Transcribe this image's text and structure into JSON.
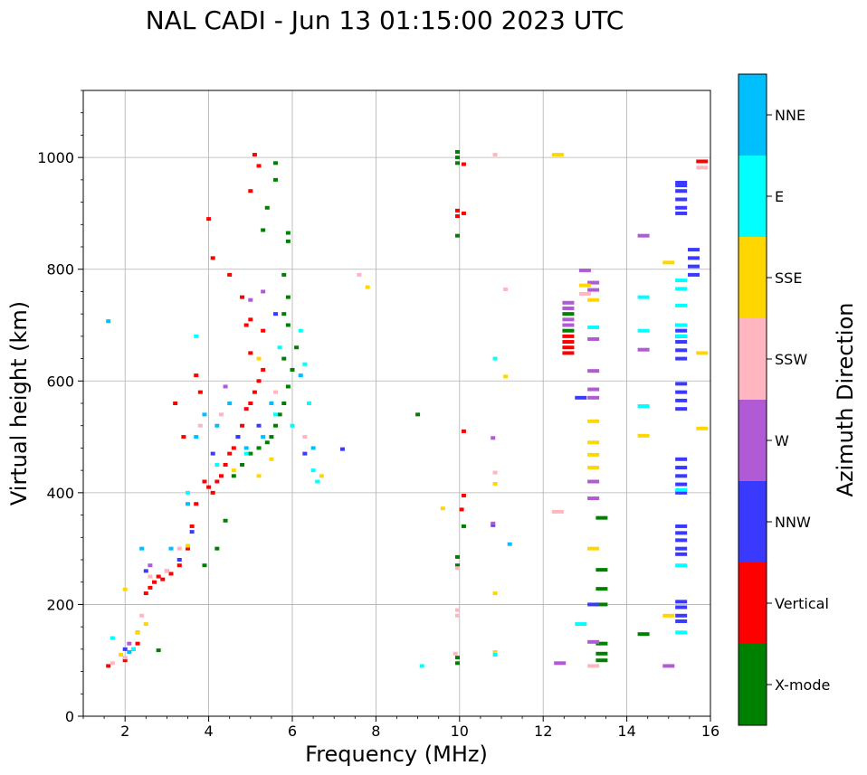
{
  "chart_data": {
    "type": "scatter",
    "title": "NAL CADI - Jun 13 01:15:00 2023 UTC",
    "xlabel": "Frequency (MHz)",
    "ylabel": "Virtual height (km)",
    "xlim": [
      1,
      16
    ],
    "ylim": [
      0,
      1120
    ],
    "xticks": [
      2,
      4,
      6,
      8,
      10,
      12,
      14,
      16
    ],
    "yticks": [
      0,
      200,
      400,
      600,
      800,
      1000
    ],
    "grid": true,
    "colorbar": {
      "label": "Azimuth Direction",
      "categories": [
        {
          "name": "X-mode",
          "color": "#008000"
        },
        {
          "name": "Vertical",
          "color": "#ff0000"
        },
        {
          "name": "NNW",
          "color": "#3a3aff"
        },
        {
          "name": "W",
          "color": "#b05ad6"
        },
        {
          "name": "SSW",
          "color": "#ffb6c1"
        },
        {
          "name": "SSE",
          "color": "#ffd700"
        },
        {
          "name": "E",
          "color": "#00ffff"
        },
        {
          "name": "NNE",
          "color": "#00bfff"
        }
      ]
    },
    "series": [
      {
        "name": "X-mode",
        "points": [
          [
            2.8,
            118
          ],
          [
            3.9,
            270
          ],
          [
            4.2,
            300
          ],
          [
            4.4,
            350
          ],
          [
            4.6,
            430
          ],
          [
            4.8,
            450
          ],
          [
            5.0,
            470
          ],
          [
            5.2,
            480
          ],
          [
            5.4,
            490
          ],
          [
            5.5,
            500
          ],
          [
            5.6,
            520
          ],
          [
            5.7,
            540
          ],
          [
            5.8,
            560
          ],
          [
            5.9,
            590
          ],
          [
            6.0,
            620
          ],
          [
            5.8,
            640
          ],
          [
            6.1,
            660
          ],
          [
            5.9,
            700
          ],
          [
            5.8,
            720
          ],
          [
            5.9,
            750
          ],
          [
            5.8,
            790
          ],
          [
            5.9,
            850
          ],
          [
            5.9,
            865
          ],
          [
            5.3,
            870
          ],
          [
            5.4,
            910
          ],
          [
            5.6,
            960
          ],
          [
            5.6,
            990
          ],
          [
            9.0,
            540
          ],
          [
            9.95,
            95
          ],
          [
            9.95,
            105
          ],
          [
            9.95,
            270
          ],
          [
            9.95,
            285
          ],
          [
            9.95,
            860
          ],
          [
            9.95,
            990
          ],
          [
            9.95,
            1000
          ],
          [
            9.95,
            1010
          ],
          [
            10.1,
            340
          ],
          [
            12.6,
            690
          ],
          [
            12.6,
            720
          ],
          [
            13.4,
            100
          ],
          [
            13.4,
            112
          ],
          [
            13.4,
            130
          ],
          [
            13.4,
            200
          ],
          [
            13.4,
            228
          ],
          [
            13.4,
            262
          ],
          [
            13.4,
            355
          ],
          [
            14.4,
            147
          ]
        ]
      },
      {
        "name": "Vertical",
        "points": [
          [
            1.6,
            90
          ],
          [
            2.0,
            100
          ],
          [
            2.2,
            120
          ],
          [
            2.3,
            130
          ],
          [
            2.3,
            150
          ],
          [
            2.5,
            220
          ],
          [
            2.6,
            230
          ],
          [
            2.7,
            240
          ],
          [
            2.8,
            250
          ],
          [
            2.9,
            245
          ],
          [
            3.0,
            260
          ],
          [
            3.1,
            255
          ],
          [
            3.3,
            270
          ],
          [
            3.5,
            300
          ],
          [
            3.6,
            340
          ],
          [
            3.7,
            380
          ],
          [
            3.9,
            420
          ],
          [
            4.0,
            410
          ],
          [
            4.1,
            400
          ],
          [
            4.2,
            420
          ],
          [
            4.3,
            430
          ],
          [
            4.4,
            450
          ],
          [
            4.5,
            470
          ],
          [
            4.6,
            480
          ],
          [
            4.7,
            500
          ],
          [
            4.8,
            520
          ],
          [
            4.9,
            550
          ],
          [
            5.0,
            560
          ],
          [
            5.1,
            580
          ],
          [
            5.2,
            600
          ],
          [
            5.3,
            620
          ],
          [
            5.0,
            650
          ],
          [
            4.9,
            700
          ],
          [
            4.8,
            750
          ],
          [
            4.5,
            790
          ],
          [
            4.1,
            820
          ],
          [
            4.0,
            890
          ],
          [
            5.0,
            940
          ],
          [
            5.2,
            985
          ],
          [
            5.1,
            1005
          ],
          [
            5.3,
            690
          ],
          [
            5.0,
            710
          ],
          [
            3.7,
            610
          ],
          [
            3.8,
            580
          ],
          [
            3.4,
            500
          ],
          [
            3.2,
            560
          ],
          [
            9.95,
            895
          ],
          [
            9.95,
            905
          ],
          [
            10.1,
            900
          ],
          [
            10.1,
            988
          ],
          [
            10.1,
            510
          ],
          [
            10.1,
            395
          ],
          [
            10.05,
            370
          ],
          [
            12.6,
            650
          ],
          [
            12.6,
            660
          ],
          [
            12.6,
            670
          ],
          [
            12.6,
            680
          ],
          [
            15.8,
            993
          ]
        ]
      },
      {
        "name": "NNW",
        "points": [
          [
            2.0,
            120
          ],
          [
            2.5,
            260
          ],
          [
            3.3,
            280
          ],
          [
            3.6,
            330
          ],
          [
            4.1,
            470
          ],
          [
            4.7,
            500
          ],
          [
            5.2,
            520
          ],
          [
            5.6,
            720
          ],
          [
            6.3,
            470
          ],
          [
            7.2,
            478
          ],
          [
            10.8,
            342
          ],
          [
            12.9,
            570
          ],
          [
            13.2,
            200
          ],
          [
            15.3,
            925
          ],
          [
            15.3,
            955
          ],
          [
            15.3,
            950
          ],
          [
            15.3,
            940
          ],
          [
            15.3,
            910
          ],
          [
            15.3,
            900
          ],
          [
            15.6,
            835
          ],
          [
            15.6,
            820
          ],
          [
            15.6,
            805
          ],
          [
            15.6,
            790
          ],
          [
            15.3,
            700
          ],
          [
            15.3,
            690
          ],
          [
            15.3,
            680
          ],
          [
            15.3,
            670
          ],
          [
            15.3,
            655
          ],
          [
            15.3,
            640
          ],
          [
            15.3,
            595
          ],
          [
            15.3,
            580
          ],
          [
            15.3,
            565
          ],
          [
            15.3,
            550
          ],
          [
            15.3,
            460
          ],
          [
            15.3,
            445
          ],
          [
            15.3,
            430
          ],
          [
            15.3,
            415
          ],
          [
            15.3,
            400
          ],
          [
            15.3,
            340
          ],
          [
            15.3,
            328
          ],
          [
            15.3,
            315
          ],
          [
            15.3,
            300
          ],
          [
            15.3,
            290
          ],
          [
            15.3,
            205
          ],
          [
            15.3,
            195
          ],
          [
            15.3,
            180
          ],
          [
            15.3,
            170
          ]
        ]
      },
      {
        "name": "W",
        "points": [
          [
            2.1,
            130
          ],
          [
            2.6,
            270
          ],
          [
            3.5,
            305
          ],
          [
            4.4,
            590
          ],
          [
            5.0,
            745
          ],
          [
            5.3,
            760
          ],
          [
            10.8,
            498
          ],
          [
            10.8,
            345
          ],
          [
            12.4,
            95
          ],
          [
            12.6,
            700
          ],
          [
            12.6,
            710
          ],
          [
            12.6,
            730
          ],
          [
            12.6,
            740
          ],
          [
            13.0,
            798
          ],
          [
            13.2,
            776
          ],
          [
            13.2,
            763
          ],
          [
            13.2,
            675
          ],
          [
            13.2,
            618
          ],
          [
            13.2,
            585
          ],
          [
            13.2,
            570
          ],
          [
            13.2,
            420
          ],
          [
            13.2,
            390
          ],
          [
            13.2,
            133
          ],
          [
            14.4,
            860
          ],
          [
            14.4,
            656
          ],
          [
            15.0,
            90
          ]
        ]
      },
      {
        "name": "SSW",
        "points": [
          [
            1.7,
            95
          ],
          [
            2.0,
            105
          ],
          [
            2.4,
            180
          ],
          [
            2.6,
            250
          ],
          [
            3.0,
            260
          ],
          [
            3.3,
            300
          ],
          [
            3.8,
            520
          ],
          [
            4.3,
            540
          ],
          [
            5.6,
            580
          ],
          [
            6.3,
            500
          ],
          [
            7.6,
            790
          ],
          [
            9.9,
            112
          ],
          [
            9.95,
            180
          ],
          [
            9.95,
            190
          ],
          [
            9.95,
            265
          ],
          [
            10.85,
            1005
          ],
          [
            10.85,
            436
          ],
          [
            11.1,
            764
          ],
          [
            12.35,
            366
          ],
          [
            13.0,
            756
          ],
          [
            13.2,
            90
          ],
          [
            15.8,
            982
          ]
        ]
      },
      {
        "name": "SSE",
        "points": [
          [
            1.9,
            110
          ],
          [
            2.0,
            227
          ],
          [
            2.3,
            150
          ],
          [
            2.5,
            165
          ],
          [
            3.5,
            305
          ],
          [
            4.6,
            440
          ],
          [
            5.2,
            430
          ],
          [
            5.5,
            460
          ],
          [
            5.2,
            640
          ],
          [
            6.7,
            430
          ],
          [
            7.8,
            768
          ],
          [
            9.6,
            372
          ],
          [
            10.85,
            220
          ],
          [
            10.85,
            115
          ],
          [
            10.85,
            416
          ],
          [
            11.1,
            608
          ],
          [
            12.35,
            1005
          ],
          [
            13.0,
            771
          ],
          [
            13.2,
            745
          ],
          [
            13.2,
            528
          ],
          [
            13.2,
            490
          ],
          [
            13.2,
            468
          ],
          [
            13.2,
            445
          ],
          [
            13.2,
            300
          ],
          [
            14.4,
            502
          ],
          [
            15.0,
            812
          ],
          [
            15.0,
            180
          ],
          [
            15.8,
            650
          ],
          [
            15.8,
            515
          ]
        ]
      },
      {
        "name": "E",
        "points": [
          [
            1.7,
            140
          ],
          [
            2.2,
            120
          ],
          [
            3.5,
            400
          ],
          [
            3.7,
            680
          ],
          [
            4.2,
            450
          ],
          [
            4.9,
            470
          ],
          [
            5.6,
            540
          ],
          [
            6.0,
            520
          ],
          [
            6.4,
            560
          ],
          [
            6.5,
            440
          ],
          [
            6.6,
            420
          ],
          [
            6.2,
            690
          ],
          [
            5.7,
            660
          ],
          [
            6.3,
            630
          ],
          [
            9.1,
            90
          ],
          [
            10.85,
            640
          ],
          [
            10.85,
            110
          ],
          [
            12.9,
            165
          ],
          [
            13.2,
            696
          ],
          [
            14.4,
            750
          ],
          [
            14.4,
            690
          ],
          [
            14.4,
            555
          ],
          [
            15.3,
            780
          ],
          [
            15.3,
            765
          ],
          [
            15.3,
            735
          ],
          [
            15.3,
            700
          ],
          [
            15.3,
            680
          ],
          [
            15.3,
            405
          ],
          [
            15.3,
            270
          ],
          [
            15.3,
            150
          ]
        ]
      },
      {
        "name": "NNE",
        "points": [
          [
            1.6,
            707
          ],
          [
            2.1,
            115
          ],
          [
            2.4,
            300
          ],
          [
            3.1,
            300
          ],
          [
            3.5,
            380
          ],
          [
            3.7,
            500
          ],
          [
            3.9,
            540
          ],
          [
            4.2,
            520
          ],
          [
            4.5,
            560
          ],
          [
            4.9,
            480
          ],
          [
            5.3,
            500
          ],
          [
            5.5,
            560
          ],
          [
            6.2,
            610
          ],
          [
            6.5,
            480
          ],
          [
            11.2,
            308
          ]
        ]
      }
    ]
  }
}
